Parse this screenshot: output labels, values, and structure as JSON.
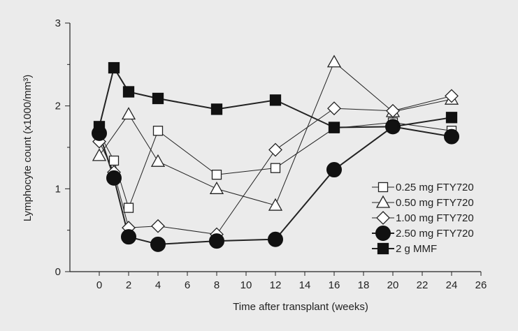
{
  "chart_data": {
    "type": "line",
    "title": "",
    "xlabel": "Time after transplant (weeks)",
    "ylabel": "Lymphocyte count (x1000/mm³)",
    "xlim": [
      -2,
      26
    ],
    "ylim": [
      0,
      3
    ],
    "x_ticks": [
      "0",
      "2",
      "4",
      "6",
      "8",
      "10",
      "12",
      "14",
      "16",
      "18",
      "20",
      "22",
      "24",
      "26"
    ],
    "y_ticks": [
      "0",
      "1",
      "2",
      "3"
    ],
    "grid": false,
    "legend_position": "right",
    "series": [
      {
        "name": "0.25 mg FTY720",
        "marker": "square-open",
        "line_width": 1,
        "x": [
          0,
          1,
          2,
          4,
          8,
          12,
          16,
          20,
          24
        ],
        "y": [
          1.67,
          1.34,
          0.77,
          1.7,
          1.17,
          1.25,
          1.73,
          1.8,
          1.7
        ]
      },
      {
        "name": "0.50 mg FTY720",
        "marker": "triangle-open",
        "line_width": 1,
        "x": [
          0,
          2,
          4,
          8,
          12,
          16,
          20,
          24
        ],
        "y": [
          1.4,
          1.9,
          1.33,
          1.0,
          0.8,
          2.53,
          1.93,
          2.08
        ]
      },
      {
        "name": "1.00 mg FTY720",
        "marker": "diamond-open",
        "line_width": 1,
        "x": [
          0,
          1,
          2,
          4,
          8,
          12,
          16,
          20,
          24
        ],
        "y": [
          1.57,
          1.2,
          0.53,
          0.55,
          0.45,
          1.47,
          1.97,
          1.94,
          2.12
        ]
      },
      {
        "name": "2.50 mg FTY720",
        "marker": "circle-filled",
        "line_width": 2,
        "x": [
          0,
          1,
          2,
          4,
          8,
          12,
          16,
          20,
          24
        ],
        "y": [
          1.67,
          1.13,
          0.42,
          0.33,
          0.37,
          0.39,
          1.23,
          1.75,
          1.63
        ]
      },
      {
        "name": "2 g MMF",
        "marker": "square-filled",
        "line_width": 2,
        "x": [
          0,
          1,
          2,
          4,
          8,
          12,
          16,
          20,
          24
        ],
        "y": [
          1.75,
          2.46,
          2.17,
          2.09,
          1.96,
          2.07,
          1.74,
          1.75,
          1.86
        ]
      }
    ]
  }
}
